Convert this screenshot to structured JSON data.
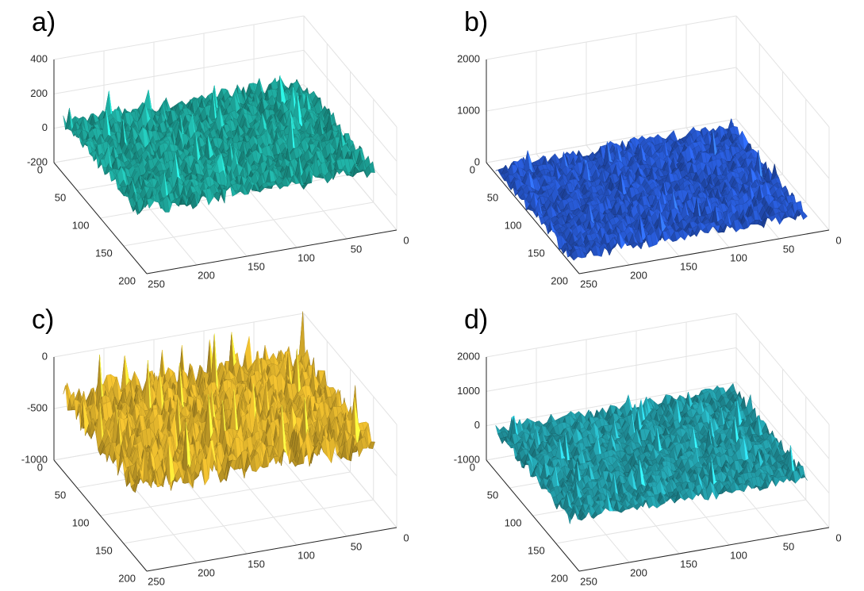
{
  "chart_data": [
    {
      "type": "surface3d",
      "label": "a)",
      "color": "#20b2a6",
      "zlim": [
        -200,
        400
      ],
      "zticks": [
        -200,
        0,
        200,
        400
      ],
      "xlim": [
        0,
        250
      ],
      "xticks": [
        0,
        50,
        100,
        150,
        200,
        250
      ],
      "ylim": [
        0,
        200
      ],
      "yticks": [
        0,
        50,
        100,
        150,
        200
      ],
      "grid": true
    },
    {
      "type": "surface3d",
      "label": "b)",
      "color": "#2a5fe0",
      "zlim": [
        0,
        2000
      ],
      "zticks": [
        0,
        1000,
        2000
      ],
      "xlim": [
        0,
        250
      ],
      "xticks": [
        0,
        50,
        100,
        150,
        200,
        250
      ],
      "ylim": [
        0,
        200
      ],
      "yticks": [
        0,
        50,
        100,
        150,
        200
      ],
      "grid": true
    },
    {
      "type": "surface3d",
      "label": "c)",
      "color": "#f2c230",
      "zlim": [
        -1000,
        0
      ],
      "zticks": [
        -1000,
        -500,
        0
      ],
      "xlim": [
        0,
        250
      ],
      "xticks": [
        0,
        50,
        100,
        150,
        200,
        250
      ],
      "ylim": [
        0,
        200
      ],
      "yticks": [
        0,
        50,
        100,
        150,
        200
      ],
      "grid": true
    },
    {
      "type": "surface3d",
      "label": "d)",
      "color": "#26a9b5",
      "zlim": [
        -1000,
        2000
      ],
      "zticks": [
        -1000,
        0,
        1000,
        2000
      ],
      "xlim": [
        0,
        250
      ],
      "xticks": [
        0,
        50,
        100,
        150,
        200,
        250
      ],
      "ylim": [
        0,
        200
      ],
      "yticks": [
        0,
        50,
        100,
        150,
        200
      ],
      "grid": true
    }
  ]
}
